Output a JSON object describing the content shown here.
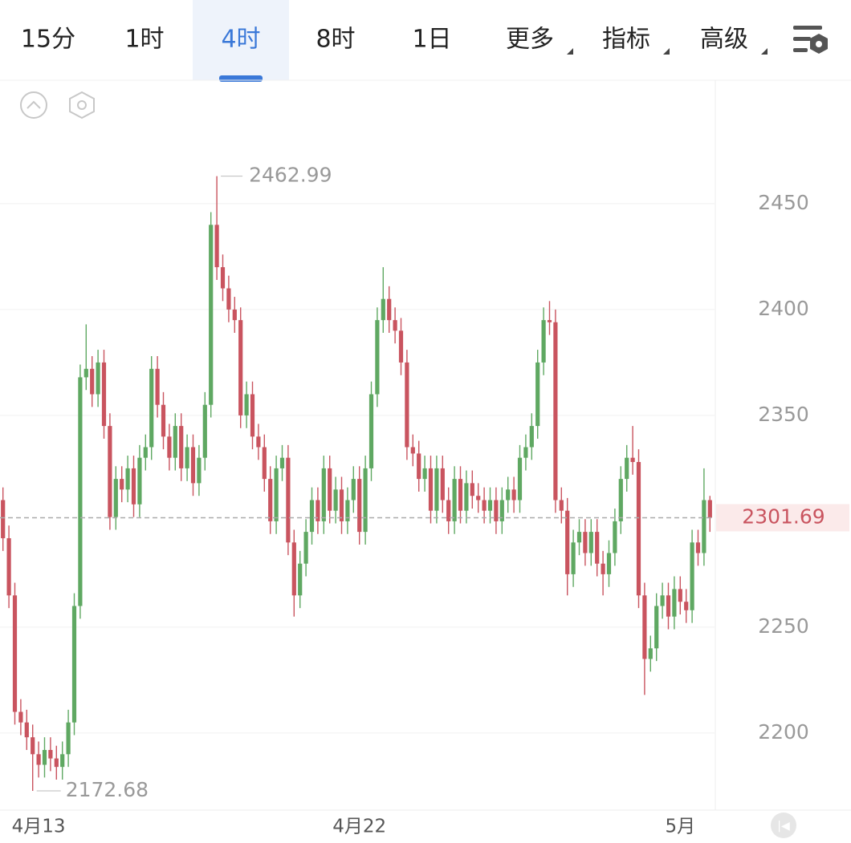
{
  "tabs": {
    "items": [
      "15分",
      "1时",
      "4时",
      "8时",
      "1日",
      "更多",
      "指标",
      "高级"
    ],
    "active": 2
  },
  "chart_data": {
    "type": "candlestick",
    "categories": [
      null,
      null,
      null,
      null,
      null,
      null,
      "4月13",
      null,
      null,
      null,
      null,
      null,
      null,
      null,
      null,
      null,
      null,
      null,
      null,
      null,
      null,
      null,
      null,
      null,
      null,
      null,
      null,
      null,
      null,
      null,
      null,
      null,
      null,
      null,
      null,
      null,
      null,
      null,
      null,
      null,
      null,
      null,
      null,
      null,
      null,
      null,
      null,
      null,
      null,
      null,
      null,
      null,
      null,
      null,
      null,
      null,
      null,
      null,
      null,
      null,
      "4月22",
      null,
      null,
      null,
      null,
      null,
      null,
      null,
      null,
      null,
      null,
      null,
      null,
      null,
      null,
      null,
      null,
      null,
      null,
      null,
      null,
      null,
      null,
      null,
      null,
      null,
      null,
      null,
      null,
      null,
      null,
      null,
      null,
      null,
      null,
      null,
      null,
      null,
      null,
      null,
      null,
      null,
      null,
      null,
      null,
      null,
      null,
      null,
      null,
      null,
      null,
      null,
      null,
      null,
      "5月",
      null,
      null,
      null,
      null,
      null
    ],
    "open": [
      2310,
      2292,
      2265,
      2210,
      2205,
      2198,
      2190,
      2185,
      2192,
      2188,
      2184,
      2190,
      2205,
      2260,
      2368,
      2372,
      2360,
      2375,
      2345,
      2302,
      2320,
      2315,
      2325,
      2308,
      2330,
      2335,
      2372,
      2355,
      2340,
      2330,
      2345,
      2325,
      2335,
      2318,
      2330,
      2355,
      2440,
      2420,
      2410,
      2400,
      2395,
      2350,
      2360,
      2340,
      2335,
      2320,
      2300,
      2325,
      2330,
      2290,
      2265,
      2280,
      2295,
      2310,
      2300,
      2325,
      2305,
      2315,
      2300,
      2310,
      2320,
      2295,
      2325,
      2360,
      2395,
      2405,
      2395,
      2390,
      2375,
      2335,
      2332,
      2320,
      2325,
      2305,
      2325,
      2310,
      2300,
      2320,
      2305,
      2318,
      2312,
      2310,
      2305,
      2310,
      2300,
      2310,
      2315,
      2310,
      2330,
      2335,
      2345,
      2375,
      2395,
      2394,
      2310,
      2305,
      2275,
      2290,
      2295,
      2285,
      2295,
      2280,
      2275,
      2285,
      2300,
      2320,
      2330,
      2328,
      2265,
      2235,
      2240,
      2260,
      2265,
      2255,
      2268,
      2262,
      2258,
      2290,
      2285,
      2310
    ],
    "high": [
      2316,
      2298,
      2271,
      2216,
      2211,
      2204,
      2196,
      2198,
      2198,
      2194,
      2196,
      2211,
      2266,
      2374,
      2393,
      2378,
      2381,
      2381,
      2351,
      2326,
      2326,
      2331,
      2331,
      2336,
      2341,
      2378,
      2378,
      2361,
      2346,
      2351,
      2351,
      2341,
      2341,
      2336,
      2361,
      2446,
      2462.99,
      2426,
      2416,
      2406,
      2401,
      2366,
      2366,
      2346,
      2341,
      2326,
      2331,
      2336,
      2336,
      2296,
      2286,
      2301,
      2316,
      2316,
      2331,
      2331,
      2321,
      2321,
      2316,
      2326,
      2326,
      2331,
      2366,
      2401,
      2420,
      2411,
      2401,
      2396,
      2381,
      2341,
      2338,
      2331,
      2331,
      2331,
      2331,
      2316,
      2326,
      2326,
      2324,
      2324,
      2318,
      2316,
      2316,
      2316,
      2316,
      2321,
      2321,
      2336,
      2341,
      2351,
      2381,
      2401,
      2404,
      2400,
      2316,
      2311,
      2296,
      2301,
      2301,
      2301,
      2301,
      2286,
      2291,
      2306,
      2326,
      2336,
      2345,
      2334,
      2271,
      2246,
      2266,
      2271,
      2271,
      2274,
      2274,
      2268,
      2296,
      2296,
      2325,
      2312
    ],
    "low": [
      2286,
      2259,
      2204,
      2199,
      2192,
      2172.68,
      2179,
      2179,
      2182,
      2178,
      2178,
      2184,
      2199,
      2254,
      2362,
      2354,
      2354,
      2339,
      2296,
      2296,
      2309,
      2309,
      2302,
      2302,
      2324,
      2329,
      2349,
      2334,
      2324,
      2324,
      2319,
      2319,
      2312,
      2312,
      2324,
      2349,
      2414,
      2404,
      2394,
      2389,
      2344,
      2344,
      2334,
      2329,
      2314,
      2294,
      2294,
      2319,
      2284,
      2255,
      2259,
      2274,
      2289,
      2294,
      2294,
      2299,
      2299,
      2294,
      2294,
      2304,
      2289,
      2289,
      2319,
      2354,
      2389,
      2389,
      2384,
      2369,
      2329,
      2326,
      2314,
      2314,
      2299,
      2299,
      2304,
      2294,
      2294,
      2299,
      2299,
      2306,
      2304,
      2299,
      2299,
      2294,
      2294,
      2304,
      2304,
      2304,
      2324,
      2329,
      2339,
      2369,
      2388,
      2304,
      2299,
      2265,
      2269,
      2284,
      2279,
      2279,
      2274,
      2265,
      2269,
      2279,
      2294,
      2314,
      2322,
      2259,
      2218,
      2229,
      2234,
      2254,
      2249,
      2249,
      2256,
      2252,
      2252,
      2279,
      2279,
      2295
    ],
    "close": [
      2292,
      2265,
      2210,
      2205,
      2198,
      2190,
      2185,
      2192,
      2188,
      2184,
      2190,
      2205,
      2260,
      2368,
      2372,
      2360,
      2375,
      2345,
      2302,
      2320,
      2315,
      2325,
      2308,
      2330,
      2335,
      2372,
      2355,
      2340,
      2330,
      2345,
      2325,
      2335,
      2318,
      2330,
      2355,
      2440,
      2420,
      2410,
      2400,
      2395,
      2350,
      2360,
      2340,
      2335,
      2320,
      2300,
      2325,
      2330,
      2290,
      2265,
      2280,
      2295,
      2310,
      2300,
      2325,
      2305,
      2315,
      2300,
      2310,
      2320,
      2295,
      2325,
      2360,
      2395,
      2405,
      2395,
      2390,
      2375,
      2335,
      2332,
      2320,
      2325,
      2305,
      2325,
      2310,
      2300,
      2320,
      2305,
      2318,
      2312,
      2310,
      2305,
      2310,
      2300,
      2310,
      2315,
      2310,
      2330,
      2335,
      2345,
      2375,
      2395,
      2394,
      2310,
      2305,
      2275,
      2290,
      2295,
      2285,
      2295,
      2280,
      2275,
      2285,
      2300,
      2320,
      2330,
      2328,
      2265,
      2235,
      2240,
      2260,
      2265,
      2255,
      2268,
      2262,
      2258,
      2290,
      2285,
      2310,
      2301.69
    ],
    "up_color": "#5fa862",
    "down_color": "#c9545f",
    "ylim": [
      2163.6,
      2508.3
    ],
    "yticks": [
      2200,
      2250,
      2350,
      2400,
      2450
    ],
    "grid": true,
    "max_index": 36,
    "min_index": 5
  }
}
